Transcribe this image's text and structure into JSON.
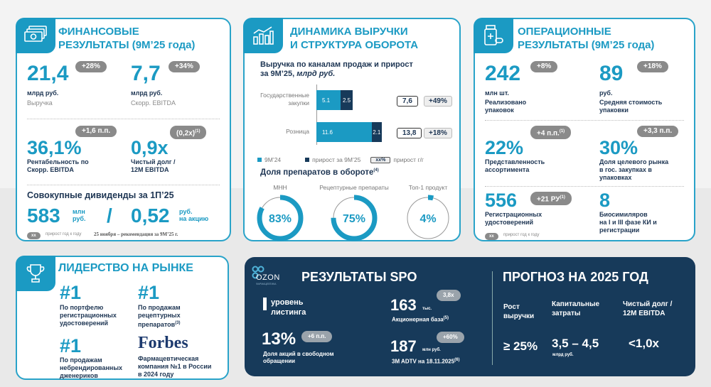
{
  "colors": {
    "accent": "#1b9ac3",
    "navy": "#173a5a",
    "badge": "#8a8a8a"
  },
  "fin": {
    "icon": "money-stack-icon",
    "title1": "ФИНАНСОВЫЕ",
    "title2": "РЕЗУЛЬТАТЫ (9M’25 года)",
    "revenue": {
      "value": "21,4",
      "badge": "+28%",
      "unit": "млрд руб.",
      "label": "Выручка"
    },
    "ebitda": {
      "value": "7,7",
      "badge": "+34%",
      "unit": "млрд руб.",
      "label": "Скорр. EBITDA"
    },
    "margin": {
      "value": "36,1%",
      "badge": "+1,6 п.п.",
      "label1": "Рентабельность по",
      "label2": "Скорр. EBITDA"
    },
    "debt": {
      "value": "0,9x",
      "badge": "(0,2x)",
      "sup": "(1)",
      "label1": "Чистый долг /",
      "label2": "12M EBITDA"
    },
    "div_title": "Совокупные дивиденды за 1П’25",
    "div_value": "583",
    "div_unit1": "млн",
    "div_unit2": "руб.",
    "slash": "/",
    "div_ps": "0,52",
    "div_ps_unit1": "руб.",
    "div_ps_unit2": "на акцию",
    "legend_badge": "xx",
    "legend_text": "прирост год к году",
    "note": "25 ноября – рекомендация за 9M’25 г."
  },
  "dyn": {
    "icon": "bar-chart-growth-icon",
    "title1": "ДИНАМИКА ВЫРУЧКИ",
    "title2": "И СТРУКТУРА ОБОРОТА",
    "chart_title1": "Выручка по каналам продаж и прирост",
    "chart_title2": "за 9M’25, ",
    "chart_title_unit": "млрд руб.",
    "legend_base": "9M’24",
    "legend_growth": "прирост за 9M’25",
    "legend_badge": "xx%",
    "legend_yoy": "прирост г/г",
    "share_title": "Доля препаратов в обороте",
    "share_sup": "(4)",
    "donuts": [
      {
        "label": "МНН",
        "value": 83,
        "text": "83%"
      },
      {
        "label": "Рецептурные препараты",
        "value": 75,
        "text": "75%"
      },
      {
        "label": "Топ-1 продукт",
        "value": 4,
        "text": "4%"
      }
    ]
  },
  "chart_data": {
    "type": "bar",
    "stacked": true,
    "orientation": "horizontal",
    "categories": [
      "Государственные закупки",
      "Розница"
    ],
    "series": [
      {
        "name": "9M’24",
        "values": [
          5.1,
          11.6
        ],
        "labels": [
          "5.1",
          "11.6"
        ]
      },
      {
        "name": "прирост за 9M’25",
        "values": [
          2.5,
          2.1
        ],
        "labels": [
          "2.5",
          "2.1"
        ]
      }
    ],
    "totals": [
      "7,6",
      "13,8"
    ],
    "growth": [
      "+49%",
      "+18%"
    ],
    "cat_lines": [
      [
        "Государственные",
        "закупки"
      ],
      [
        "Розница"
      ]
    ]
  },
  "ops": {
    "icon": "medicine-bottle-icon",
    "title1": "ОПЕРАЦИОННЫЕ",
    "title2": "РЕЗУЛЬТАТЫ (9M’25 года)",
    "packs": {
      "value": "242",
      "badge": "+8%",
      "unit": "млн шт.",
      "label1": "Реализовано",
      "label2": "упаковок"
    },
    "price": {
      "value": "89",
      "badge": "+18%",
      "unit": "руб.",
      "label1": "Средняя стоимость",
      "label2": "упаковки"
    },
    "assort": {
      "value": "22%",
      "badge": "+4 п.п.",
      "sup": "(1)",
      "label1": "Представленность",
      "label2": "ассортимента"
    },
    "share": {
      "value": "30%",
      "badge": "+3,3 п.п.",
      "label1": "Доля целевого рынка",
      "label2": "в гос. закупках в",
      "label3": "упаковках"
    },
    "reg": {
      "value": "556",
      "badge": "+21 РУ",
      "sup": "(1)",
      "label1": "Регистрационных",
      "label2": "удостоверений"
    },
    "bio": {
      "value": "8",
      "label1": "Биосимиляров",
      "label2": "на I и III фазе КИ и",
      "label3": "регистрации"
    },
    "legend_badge": "xx",
    "legend_text": "прирост год к году"
  },
  "lead": {
    "icon": "trophy-icon",
    "title": "ЛИДЕРСТВО НА РЫНКЕ",
    "items": [
      {
        "rank": "#1",
        "l1": "По портфелю",
        "l2": "регистрационных",
        "l3": "удостоверений"
      },
      {
        "rank": "#1",
        "l1": "По продажам",
        "l2": "рецептурных",
        "l3": "препаратов",
        "sup": "(3)"
      },
      {
        "rank": "#1",
        "l1": "По продажам",
        "l2": "небрендированных",
        "l3": "дженериков"
      }
    ],
    "forbes": "Forbes",
    "forbes_l1": "Фармацевтическая",
    "forbes_l2": "компания  №1 в России",
    "forbes_l3": "в 2024 году"
  },
  "spo": {
    "logo": "OZON",
    "logo_sub": "ФАРМАЦЕВТИКА",
    "title": "РЕЗУЛЬТАТЫ SPO",
    "level_mark": "I",
    "level1": "уровень",
    "level2": "листинга",
    "free_float": "13%",
    "ff_badge": "+6 п.п.",
    "ff_l1": "Доля акций в свободном",
    "ff_l2": "обращении",
    "holders": "163",
    "holders_unit": "тыс.",
    "holders_badge": "3,8x",
    "holders_label": "Акционерная база",
    "holders_sup": "(5)",
    "adtv": "187",
    "adtv_unit": "млн руб.",
    "adtv_badge": "+60%",
    "adtv_label": "3M ADTV на 18.11.2025",
    "adtv_sup": "(6)"
  },
  "fc": {
    "title": "ПРОГНОЗ НА 2025 ГОД",
    "items": [
      {
        "l1": "Рост",
        "l2": "выручки",
        "value": "≥ 25%",
        "unit": ""
      },
      {
        "l1": "Капитальные",
        "l2": "затраты",
        "value": "3,5 – 4,5",
        "unit": "млрд руб."
      },
      {
        "l1": "Чистый долг /",
        "l2": "12M EBITDA",
        "value": "<1,0x",
        "unit": ""
      }
    ]
  }
}
